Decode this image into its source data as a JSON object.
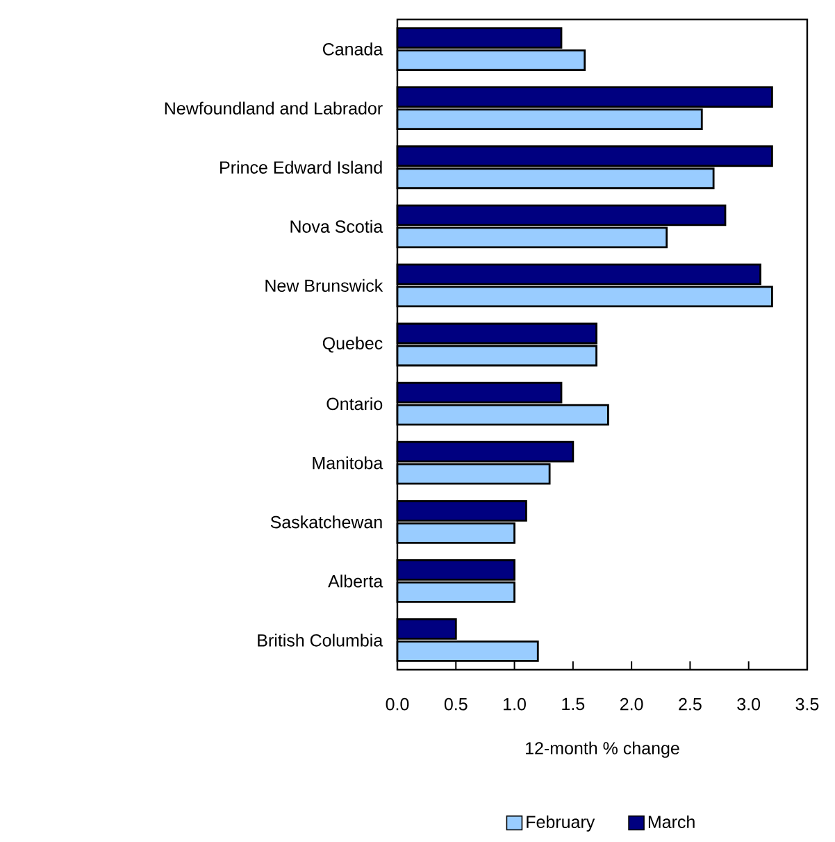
{
  "chart_data": {
    "type": "bar",
    "orientation": "horizontal",
    "xlabel": "12-month % change",
    "categories": [
      "Canada",
      "Newfoundland and Labrador",
      "Prince Edward Island",
      "Nova Scotia",
      "New Brunswick",
      "Quebec",
      "Ontario",
      "Manitoba",
      "Saskatchewan",
      "Alberta",
      "British Columbia"
    ],
    "series": [
      {
        "name": "February",
        "color": "#99ccff",
        "values": [
          1.6,
          2.6,
          2.7,
          2.3,
          3.2,
          1.7,
          1.8,
          1.3,
          1.0,
          1.0,
          1.2
        ]
      },
      {
        "name": "March",
        "color": "#000080",
        "values": [
          1.4,
          3.2,
          3.2,
          2.8,
          3.1,
          1.7,
          1.4,
          1.5,
          1.1,
          1.0,
          0.5
        ]
      }
    ],
    "xlim": [
      0,
      3.5
    ],
    "xticks": [
      {
        "value": 0,
        "label": "0.0"
      },
      0.5,
      {
        "value": 1,
        "label": "1.0"
      },
      1.5,
      {
        "value": 2,
        "label": "2.0"
      },
      2.5,
      {
        "value": 3,
        "label": "3.0"
      },
      3.5
    ],
    "grid": false,
    "legend": "bottom"
  }
}
